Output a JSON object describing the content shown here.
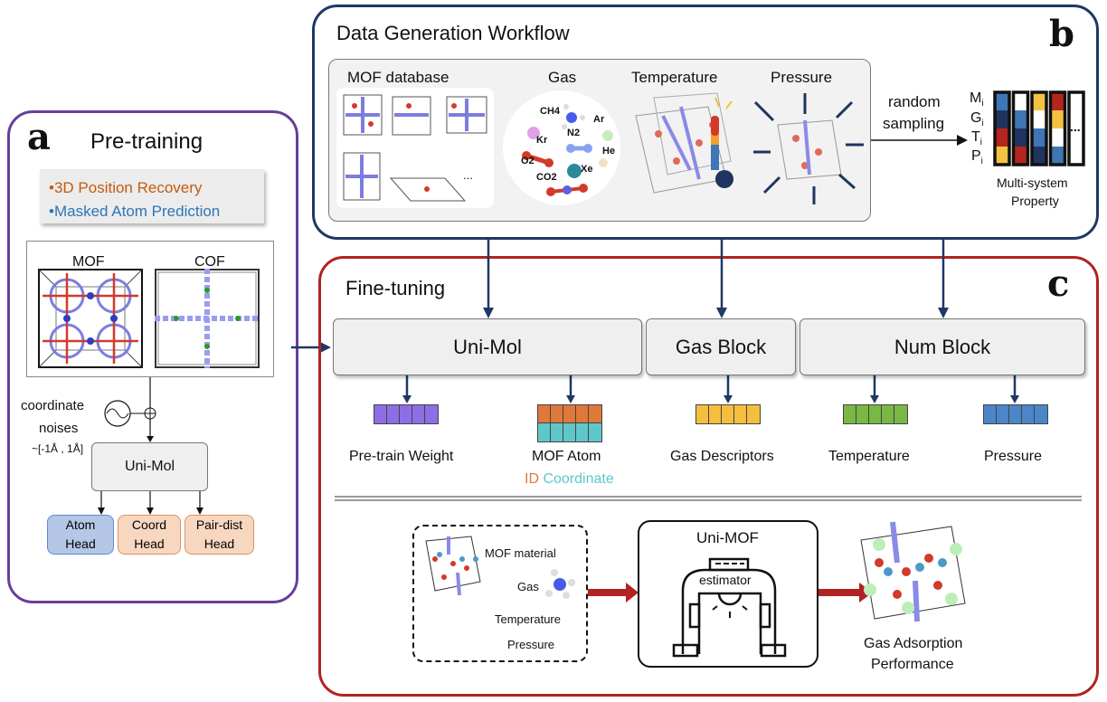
{
  "panel_a": {
    "letter": "a",
    "title": "Pre-training",
    "tasks": [
      "3D Position Recovery",
      "Masked Atom Prediction"
    ],
    "structures": [
      "MOF",
      "COF"
    ],
    "noise_label_1": "coordinate",
    "noise_label_2": "noises",
    "noise_range": "~[-1Å , 1Å]",
    "model": "Uni-Mol",
    "heads": [
      {
        "line1": "Atom",
        "line2": "Head"
      },
      {
        "line1": "Coord",
        "line2": "Head"
      },
      {
        "line1": "Pair-dist",
        "line2": "Head"
      }
    ]
  },
  "panel_b": {
    "letter": "b",
    "title": "Data Generation Workflow",
    "inputs": [
      "MOF database",
      "Gas",
      "Temperature",
      "Pressure"
    ],
    "ellipsis": "...",
    "gases": [
      "CH4",
      "Ar",
      "Kr",
      "N2",
      "He",
      "O2",
      "Xe",
      "CO2"
    ],
    "sampling_1": "random",
    "sampling_2": "sampling",
    "row_labels": [
      "M",
      "G",
      "T",
      "P"
    ],
    "row_subscript": "i",
    "matrix_ellipsis": "...",
    "property_1": "Multi-system",
    "property_2": "Property",
    "matrix_colors": [
      [
        "#3f76b5",
        "#1f3560",
        "#b5251d",
        "#f4c242"
      ],
      [
        "#ffffff",
        "#3f76b5",
        "#1f3560",
        "#b5251d"
      ],
      [
        "#f4c242",
        "#ffffff",
        "#3f76b5",
        "#1f3560"
      ],
      [
        "#b5251d",
        "#f4c242",
        "#ffffff",
        "#3f76b5"
      ]
    ]
  },
  "panel_c": {
    "letter": "c",
    "title": "Fine-tuning",
    "blocks": [
      "Uni-Mol",
      "Gas Block",
      "Num Block"
    ],
    "embeddings": [
      "Pre-train Weight",
      "MOF Atom",
      "Gas Descriptors",
      "Temperature",
      "Pressure"
    ],
    "mof_atom_id": "ID",
    "mof_atom_coord": "Coordinate",
    "input_items": [
      "MOF material",
      "Gas",
      "Temperature",
      "Pressure"
    ],
    "model_name": "Uni-MOF",
    "estimator": "estimator",
    "output_1": "Gas Adsorption",
    "output_2": "Performance"
  },
  "colors": {
    "panel_a_border": "#6a3d9a",
    "panel_b_border": "#1f3864",
    "panel_c_border": "#b22222",
    "task_recovery": "#c55a11",
    "task_masked": "#2e75b6",
    "emb_purple": "#8e6ee6",
    "emb_orange": "#e0783a",
    "emb_teal": "#5fc7c9",
    "emb_yellow": "#f4be3e",
    "emb_green": "#78b843",
    "emb_blue": "#4a86c8"
  }
}
